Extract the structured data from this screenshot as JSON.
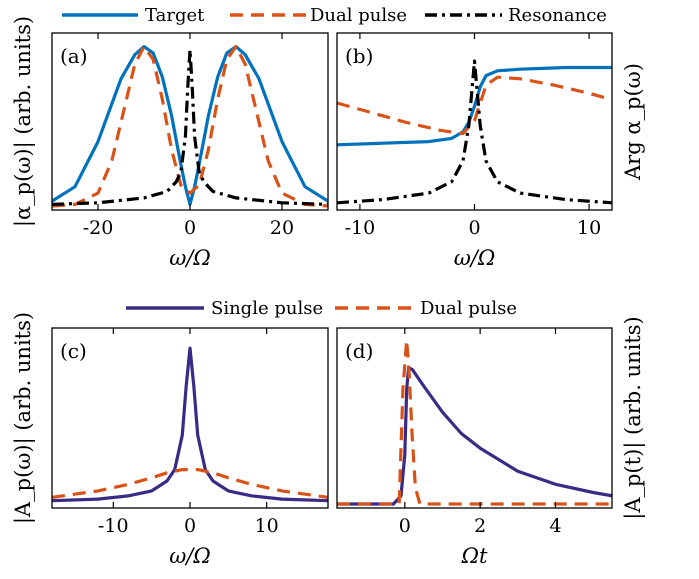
{
  "colors": {
    "target": "#0072BD",
    "dual": "#D95319",
    "resonance": "#000000",
    "single": "#3A2A86"
  },
  "legend_top": [
    "Target",
    "Dual pulse",
    "Resonance"
  ],
  "legend_bottom": [
    "Single pulse",
    "Dual pulse"
  ],
  "chart_data": [
    {
      "panel": "(a)",
      "type": "line",
      "xlabel": "ω/Ω",
      "ylabel": "|α_p(ω)| (arb. units)",
      "xlim": [
        -30,
        30
      ],
      "ylim": [
        0,
        1
      ],
      "xticks": [
        -20,
        0,
        20
      ],
      "xticklabels": [
        "-20",
        "0",
        "20"
      ],
      "series": [
        {
          "name": "Target",
          "style": "solid",
          "color": "#0072BD",
          "x": [
            -30,
            -25,
            -20,
            -15,
            -12,
            -10,
            -8,
            -6,
            -4,
            -2,
            -1,
            0,
            1,
            2,
            4,
            6,
            8,
            10,
            12,
            15,
            20,
            25,
            30
          ],
          "y": [
            0.03,
            0.12,
            0.4,
            0.79,
            0.94,
            0.99,
            0.95,
            0.8,
            0.56,
            0.26,
            0.12,
            0.01,
            0.12,
            0.26,
            0.56,
            0.8,
            0.95,
            0.99,
            0.94,
            0.79,
            0.4,
            0.12,
            0.03
          ]
        },
        {
          "name": "Dual pulse",
          "style": "dashed",
          "color": "#D95319",
          "x": [
            -30,
            -25,
            -20,
            -17,
            -15,
            -12,
            -10,
            -8,
            -6,
            -4,
            -2,
            0,
            2,
            4,
            6,
            8,
            10,
            12,
            15,
            17,
            20,
            25,
            30
          ],
          "y": [
            0.0,
            0.01,
            0.08,
            0.28,
            0.52,
            0.88,
            0.99,
            0.91,
            0.66,
            0.35,
            0.13,
            0.08,
            0.13,
            0.35,
            0.66,
            0.91,
            0.99,
            0.88,
            0.52,
            0.28,
            0.08,
            0.01,
            0.0
          ]
        },
        {
          "name": "Resonance",
          "style": "dashdot",
          "color": "#000000",
          "x": [
            -30,
            -20,
            -10,
            -5,
            -3,
            -2,
            -1,
            -0.5,
            0,
            0.5,
            1,
            2,
            3,
            5,
            10,
            20,
            30
          ],
          "y": [
            0.01,
            0.02,
            0.05,
            0.09,
            0.15,
            0.21,
            0.43,
            0.73,
            0.97,
            0.73,
            0.43,
            0.21,
            0.15,
            0.09,
            0.05,
            0.02,
            0.01
          ]
        }
      ]
    },
    {
      "panel": "(b)",
      "type": "line",
      "xlabel": "ω/Ω",
      "ylabel": "Arg α_p(ω)",
      "xlim": [
        -12,
        12
      ],
      "ylim": [
        0,
        1
      ],
      "xticks": [
        -10,
        0,
        10
      ],
      "xticklabels": [
        "-10",
        "0",
        "10"
      ],
      "series": [
        {
          "name": "Target",
          "style": "solid",
          "color": "#0072BD",
          "x": [
            -12,
            -8,
            -4,
            -2,
            -1,
            -0.5,
            0,
            0.5,
            1,
            2,
            4,
            8,
            12
          ],
          "y": [
            0.38,
            0.39,
            0.4,
            0.42,
            0.46,
            0.52,
            0.62,
            0.74,
            0.81,
            0.84,
            0.85,
            0.86,
            0.86
          ]
        },
        {
          "name": "Dual pulse",
          "style": "dashed",
          "color": "#D95319",
          "x": [
            -12,
            -9,
            -6,
            -3,
            -1,
            0,
            1,
            2,
            4,
            7,
            10,
            12
          ],
          "y": [
            0.64,
            0.58,
            0.52,
            0.47,
            0.45,
            0.53,
            0.75,
            0.8,
            0.79,
            0.75,
            0.7,
            0.66
          ]
        },
        {
          "name": "Resonance",
          "style": "dashdot",
          "color": "#000000",
          "x": [
            -12,
            -8,
            -4,
            -2,
            -1,
            -0.5,
            0,
            0.5,
            1,
            2,
            4,
            8,
            12
          ],
          "y": [
            0.02,
            0.04,
            0.08,
            0.15,
            0.28,
            0.5,
            0.9,
            0.5,
            0.28,
            0.15,
            0.08,
            0.04,
            0.02
          ]
        }
      ]
    },
    {
      "panel": "(c)",
      "type": "line",
      "xlabel": "ω/Ω",
      "ylabel": "|A_p(ω)| (arb. units)",
      "xlim": [
        -18,
        18
      ],
      "ylim": [
        0,
        1
      ],
      "xticks": [
        -10,
        0,
        10
      ],
      "xticklabels": [
        "-10",
        "0",
        "10"
      ],
      "series": [
        {
          "name": "Single pulse",
          "style": "solid",
          "color": "#3A2A86",
          "x": [
            -18,
            -12,
            -8,
            -5,
            -3,
            -2,
            -1,
            -0.5,
            0,
            0.5,
            1,
            2,
            3,
            5,
            8,
            12,
            18
          ],
          "y": [
            0.02,
            0.03,
            0.05,
            0.08,
            0.14,
            0.21,
            0.42,
            0.72,
            0.95,
            0.72,
            0.42,
            0.21,
            0.14,
            0.08,
            0.05,
            0.03,
            0.02
          ]
        },
        {
          "name": "Dual pulse",
          "style": "dashed",
          "color": "#D95319",
          "x": [
            -18,
            -12,
            -8,
            -5,
            -3,
            -1,
            0,
            1,
            3,
            5,
            8,
            12,
            18
          ],
          "y": [
            0.04,
            0.08,
            0.12,
            0.16,
            0.19,
            0.21,
            0.21,
            0.21,
            0.19,
            0.16,
            0.12,
            0.08,
            0.04
          ]
        }
      ]
    },
    {
      "panel": "(d)",
      "type": "line",
      "xlabel": "Ωt",
      "ylabel": "|A_p(t)| (arb. units)",
      "xlim": [
        -1.8,
        5.5
      ],
      "ylim": [
        0,
        1
      ],
      "xticks": [
        0,
        2,
        4
      ],
      "xticklabels": [
        "0",
        "2",
        "4"
      ],
      "series": [
        {
          "name": "Single pulse",
          "style": "solid",
          "color": "#3A2A86",
          "x": [
            -1.8,
            -0.3,
            -0.1,
            0,
            0.05,
            0.1,
            0.2,
            0.5,
            1,
            1.5,
            2,
            3,
            4,
            5,
            5.5
          ],
          "y": [
            0,
            0,
            0.05,
            0.3,
            0.7,
            0.83,
            0.82,
            0.72,
            0.56,
            0.43,
            0.34,
            0.2,
            0.12,
            0.07,
            0.05
          ]
        },
        {
          "name": "Dual pulse",
          "style": "dashed",
          "color": "#D95319",
          "x": [
            -1.8,
            -0.15,
            -0.05,
            0.05,
            0.12,
            0.2,
            0.28,
            0.4,
            5.5
          ],
          "y": [
            0,
            0,
            0.7,
            1.0,
            0.78,
            0.4,
            0.1,
            0,
            0
          ]
        }
      ]
    }
  ]
}
